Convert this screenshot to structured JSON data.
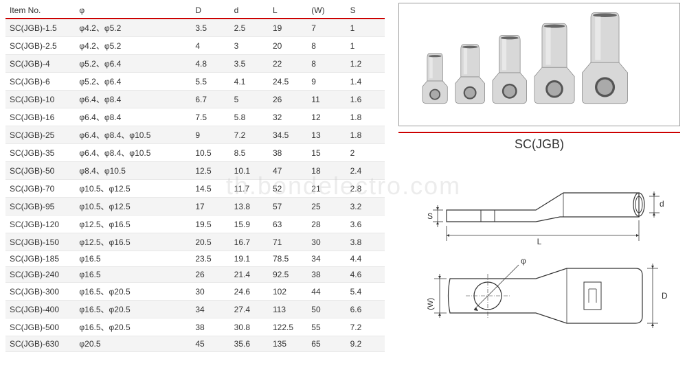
{
  "table": {
    "headers": [
      "Item No.",
      "φ",
      "D",
      "d",
      "L",
      "(W)",
      "S"
    ],
    "rows": [
      [
        "SC(JGB)-1.5",
        "φ4.2、φ5.2",
        "3.5",
        "2.5",
        "19",
        "7",
        "1"
      ],
      [
        "SC(JGB)-2.5",
        "φ4.2、φ5.2",
        "4",
        "3",
        "20",
        "8",
        "1"
      ],
      [
        "SC(JGB)-4",
        "φ5.2、φ6.4",
        "4.8",
        "3.5",
        "22",
        "8",
        "1.2"
      ],
      [
        "SC(JGB)-6",
        "φ5.2、φ6.4",
        "5.5",
        "4.1",
        "24.5",
        "9",
        "1.4"
      ],
      [
        "SC(JGB)-10",
        "φ6.4、φ8.4",
        "6.7",
        "5",
        "26",
        "11",
        "1.6"
      ],
      [
        "SC(JGB)-16",
        "φ6.4、φ8.4",
        "7.5",
        "5.8",
        "32",
        "12",
        "1.8"
      ],
      [
        "SC(JGB)-25",
        "φ6.4、φ8.4、φ10.5",
        "9",
        "7.2",
        "34.5",
        "13",
        "1.8"
      ],
      [
        "SC(JGB)-35",
        "φ6.4、φ8.4、φ10.5",
        "10.5",
        "8.5",
        "38",
        "15",
        "2"
      ],
      [
        "SC(JGB)-50",
        "φ8.4、φ10.5",
        "12.5",
        "10.1",
        "47",
        "18",
        "2.4"
      ],
      [
        "SC(JGB)-70",
        "φ10.5、φ12.5",
        "14.5",
        "11.7",
        "52",
        "21",
        "2.8"
      ],
      [
        "SC(JGB)-95",
        "φ10.5、φ12.5",
        "17",
        "13.8",
        "57",
        "25",
        "3.2"
      ],
      [
        "SC(JGB)-120",
        "φ12.5、φ16.5",
        "19.5",
        "15.9",
        "63",
        "28",
        "3.6"
      ],
      [
        "SC(JGB)-150",
        "φ12.5、φ16.5",
        "20.5",
        "16.7",
        "71",
        "30",
        "3.8"
      ],
      [
        "SC(JGB)-185",
        "φ16.5",
        "23.5",
        "19.1",
        "78.5",
        "34",
        "4.4"
      ],
      [
        "SC(JGB)-240",
        "φ16.5",
        "26",
        "21.4",
        "92.5",
        "38",
        "4.6"
      ],
      [
        "SC(JGB)-300",
        "φ16.5、φ20.5",
        "30",
        "24.6",
        "102",
        "44",
        "5.4"
      ],
      [
        "SC(JGB)-400",
        "φ16.5、φ20.5",
        "34",
        "27.4",
        "113",
        "50",
        "6.6"
      ],
      [
        "SC(JGB)-500",
        "φ16.5、φ20.5",
        "38",
        "30.8",
        "122.5",
        "55",
        "7.2"
      ],
      [
        "SC(JGB)-630",
        "φ20.5",
        "45",
        "35.6",
        "135",
        "65",
        "9.2"
      ]
    ]
  },
  "product": {
    "label": "SC(JGB)",
    "lugs": [
      {
        "scale": 0.55
      },
      {
        "scale": 0.65
      },
      {
        "scale": 0.75
      },
      {
        "scale": 0.88
      },
      {
        "scale": 1.0
      }
    ]
  },
  "diagram": {
    "labels": {
      "L": "L",
      "S": "S",
      "d": "d",
      "W": "(W)",
      "D": "D",
      "phi": "φ"
    }
  },
  "watermark": "th.bondelectro.com",
  "colors": {
    "accent": "#cc0000",
    "border": "#999999",
    "stroke": "#333333",
    "lug_fill": "#d8d8d8",
    "lug_shine": "#f0f0f0",
    "row_alt": "#f4f4f4"
  }
}
